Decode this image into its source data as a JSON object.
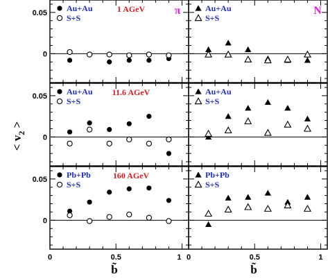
{
  "chart_data": {
    "type": "scatter",
    "ylabel": "< v",
    "ylabel_sub": "2",
    "ylabel_close": " >",
    "xlabel": "b̃",
    "xlim": [
      0,
      1.05
    ],
    "ylim": [
      -0.035,
      0.065
    ],
    "yticks": [
      0,
      0.05
    ],
    "ytick_labels": [
      "0",
      "0.05"
    ],
    "xticks": [
      0,
      0.5,
      1
    ],
    "xtick_labels": [
      "0",
      "0.5",
      "1"
    ],
    "columns": [
      "π",
      "N"
    ],
    "rows": [
      {
        "energy": "1 AGeV",
        "pi": {
          "legend": [
            "Au+Au",
            "S+S"
          ],
          "series": [
            {
              "name": "Au+Au",
              "marker": "filled-circle",
              "x": [
                0.15,
                0.3,
                0.45,
                0.6,
                0.75,
                0.9
              ],
              "y": [
                -0.008,
                -0.001,
                -0.01,
                -0.008,
                -0.008,
                -0.006
              ]
            },
            {
              "name": "S+S",
              "marker": "open-circle",
              "x": [
                0.15,
                0.3,
                0.45,
                0.6,
                0.75,
                0.9
              ],
              "y": [
                0.002,
                -0.001,
                -0.001,
                -0.002,
                -0.001,
                -0.002
              ]
            }
          ]
        },
        "N": {
          "legend": [
            "Au+Au",
            "S+S"
          ],
          "series": [
            {
              "name": "Au+Au",
              "marker": "filled-triangle",
              "x": [
                0.15,
                0.3,
                0.45,
                0.6,
                0.75,
                0.9
              ],
              "y": [
                0.005,
                0.013,
                0.005,
                -0.006,
                -0.008,
                -0.008
              ]
            },
            {
              "name": "S+S",
              "marker": "open-triangle",
              "x": [
                0.15,
                0.3,
                0.45,
                0.6,
                0.75,
                0.9
              ],
              "y": [
                -0.001,
                -0.001,
                -0.007,
                -0.008,
                -0.007,
                -0.001
              ]
            }
          ]
        }
      },
      {
        "energy": "11.6 AGeV",
        "pi": {
          "legend": [
            "Au+Au",
            "S+S"
          ],
          "series": [
            {
              "name": "Au+Au",
              "marker": "filled-circle",
              "x": [
                0.15,
                0.3,
                0.45,
                0.6,
                0.75,
                0.9
              ],
              "y": [
                0.006,
                0.017,
                0.009,
                0.016,
                0.025,
                -0.02
              ]
            },
            {
              "name": "S+S",
              "marker": "open-circle",
              "x": [
                0.15,
                0.3,
                0.45,
                0.6,
                0.75,
                0.9
              ],
              "y": [
                -0.008,
                0.009,
                -0.008,
                -0.003,
                -0.008,
                -0.003
              ]
            }
          ]
        },
        "N": {
          "legend": [
            "Au+Au",
            "S+S"
          ],
          "series": [
            {
              "name": "Au+Au",
              "marker": "filled-triangle",
              "x": [
                0.15,
                0.3,
                0.45,
                0.6,
                0.75,
                0.9
              ],
              "y": [
                0.0,
                0.025,
                0.035,
                0.042,
                0.035,
                0.022
              ]
            },
            {
              "name": "S+S",
              "marker": "open-triangle",
              "x": [
                0.15,
                0.3,
                0.45,
                0.6,
                0.75,
                0.9
              ],
              "y": [
                0.004,
                0.008,
                0.019,
                0.005,
                0.015,
                0.01
              ]
            }
          ]
        }
      },
      {
        "energy": "160 AGeV",
        "pi": {
          "legend": [
            "Pb+Pb",
            "S+S"
          ],
          "series": [
            {
              "name": "Pb+Pb",
              "marker": "filled-circle",
              "x": [
                0.15,
                0.3,
                0.45,
                0.6,
                0.75,
                0.9
              ],
              "y": [
                0.011,
                0.022,
                0.034,
                0.038,
                0.039,
                0.024
              ]
            },
            {
              "name": "S+S",
              "marker": "open-circle",
              "x": [
                0.15,
                0.3,
                0.45,
                0.6,
                0.75,
                0.9
              ],
              "y": [
                0.006,
                -0.001,
                0.004,
                0.007,
                0.003,
                -0.001
              ]
            }
          ]
        },
        "N": {
          "legend": [
            "Pb+Pb",
            "S+S"
          ],
          "series": [
            {
              "name": "Pb+Pb",
              "marker": "filled-triangle",
              "x": [
                0.15,
                0.3,
                0.45,
                0.6,
                0.75,
                0.9
              ],
              "y": [
                -0.005,
                0.027,
                0.028,
                0.033,
                0.022,
                0.028
              ]
            },
            {
              "name": "S+S",
              "marker": "open-triangle",
              "x": [
                0.15,
                0.3,
                0.45,
                0.6,
                0.75,
                0.9
              ],
              "y": [
                0.008,
                0.013,
                0.016,
                0.014,
                0.018,
                0.014
              ]
            }
          ]
        }
      }
    ]
  }
}
